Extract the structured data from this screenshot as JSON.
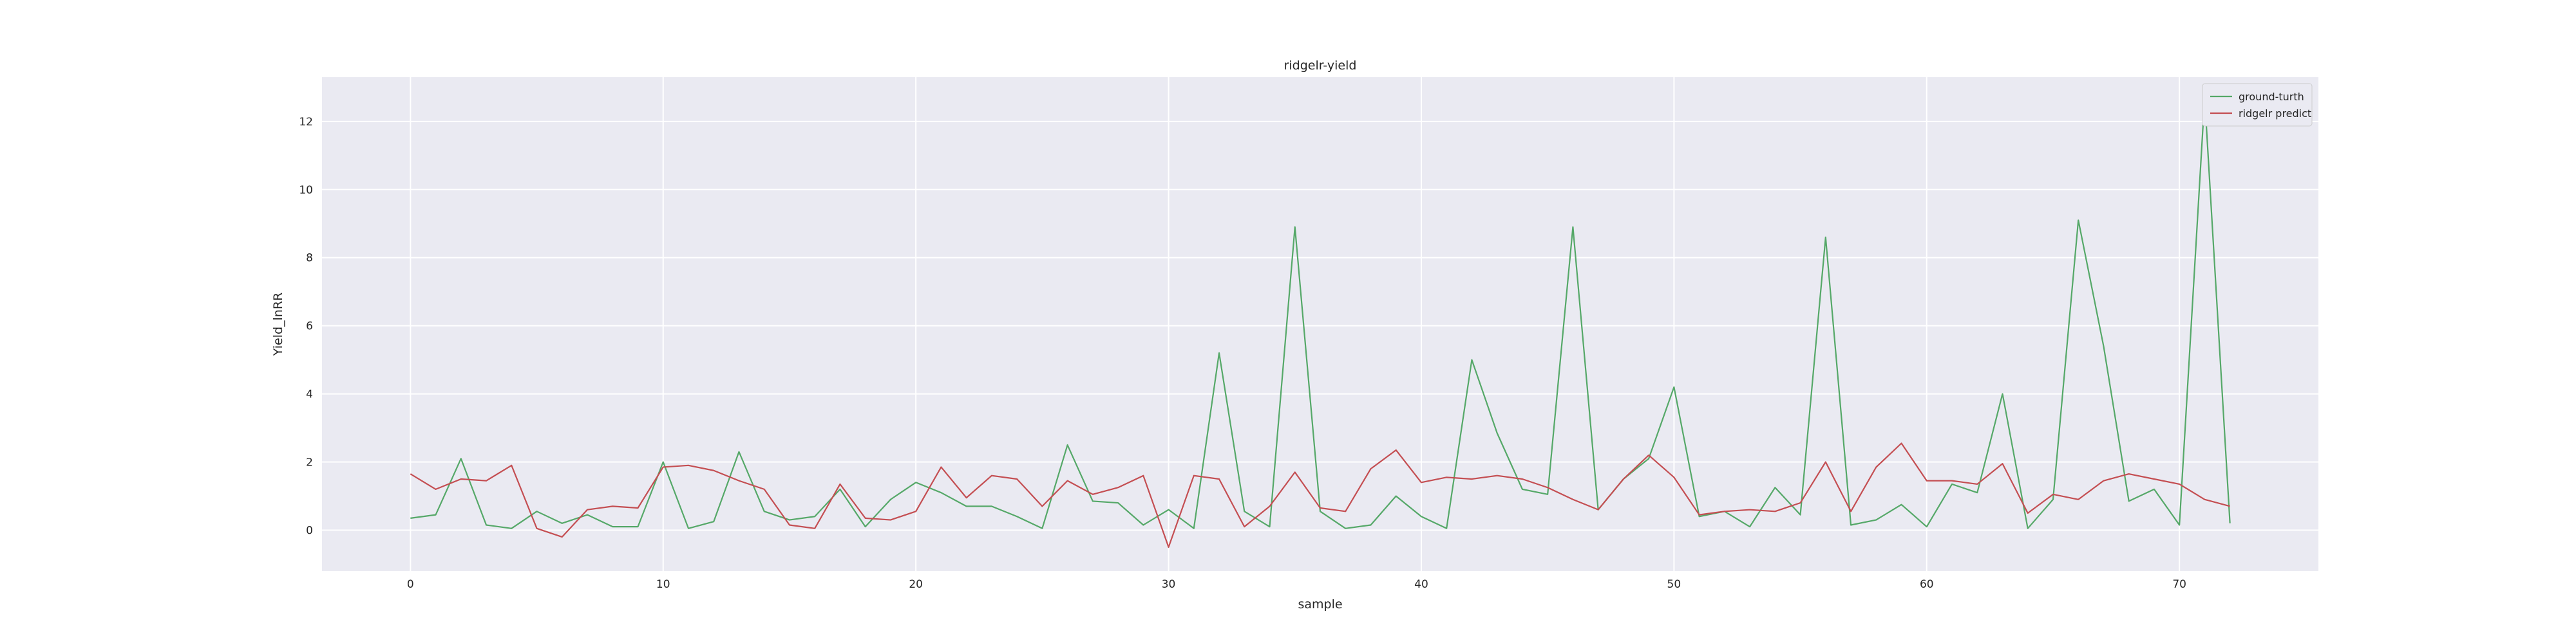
{
  "chart_data": {
    "type": "line",
    "title": "ridgelr-yield",
    "xlabel": "sample",
    "ylabel": "Yield_lnRR",
    "xlim": [
      -3.5,
      75.5
    ],
    "ylim": [
      -1.2,
      13.3
    ],
    "xticks": [
      0,
      10,
      20,
      30,
      40,
      50,
      60,
      70
    ],
    "yticks": [
      0,
      2,
      4,
      6,
      8,
      10,
      12
    ],
    "grid": true,
    "legend_position": "top-right",
    "background_color": "#eaeaf2",
    "grid_color": "#ffffff",
    "series": [
      {
        "name": "ground-turth",
        "color": "#55a868",
        "values": [
          0.35,
          0.45,
          2.1,
          0.15,
          0.05,
          0.55,
          0.2,
          0.45,
          0.1,
          0.1,
          2.0,
          0.05,
          0.25,
          2.3,
          0.55,
          0.3,
          0.4,
          1.2,
          0.1,
          0.9,
          1.4,
          1.1,
          0.7,
          0.7,
          0.4,
          0.05,
          2.5,
          0.85,
          0.8,
          0.15,
          0.6,
          0.05,
          5.2,
          0.55,
          0.1,
          8.9,
          0.55,
          0.05,
          0.15,
          1.0,
          0.4,
          0.05,
          5.0,
          2.85,
          1.2,
          1.05,
          8.9,
          0.6,
          1.5,
          2.1,
          4.2,
          0.4,
          0.55,
          0.1,
          1.25,
          0.45,
          8.6,
          0.15,
          0.3,
          0.75,
          0.1,
          1.35,
          1.1,
          4.0,
          0.05,
          0.9,
          9.1,
          5.4,
          0.85,
          1.2,
          0.15,
          12.7,
          0.2
        ]
      },
      {
        "name": "ridgelr predict",
        "color": "#c44e52",
        "values": [
          1.65,
          1.2,
          1.5,
          1.45,
          1.9,
          0.05,
          -0.2,
          0.6,
          0.7,
          0.65,
          1.85,
          1.9,
          1.75,
          1.45,
          1.2,
          0.15,
          0.05,
          1.35,
          0.35,
          0.3,
          0.55,
          1.85,
          0.95,
          1.6,
          1.5,
          0.7,
          1.45,
          1.05,
          1.25,
          1.6,
          -0.5,
          1.6,
          1.5,
          0.1,
          0.7,
          1.7,
          0.65,
          0.55,
          1.8,
          2.35,
          1.4,
          1.55,
          1.5,
          1.6,
          1.5,
          1.25,
          0.9,
          0.6,
          1.5,
          2.2,
          1.55,
          0.45,
          0.55,
          0.6,
          0.55,
          0.8,
          2.0,
          0.55,
          1.85,
          2.55,
          1.45,
          1.45,
          1.35,
          1.95,
          0.5,
          1.05,
          0.9,
          1.45,
          1.65,
          1.5,
          1.35,
          0.9,
          0.7
        ]
      }
    ]
  }
}
